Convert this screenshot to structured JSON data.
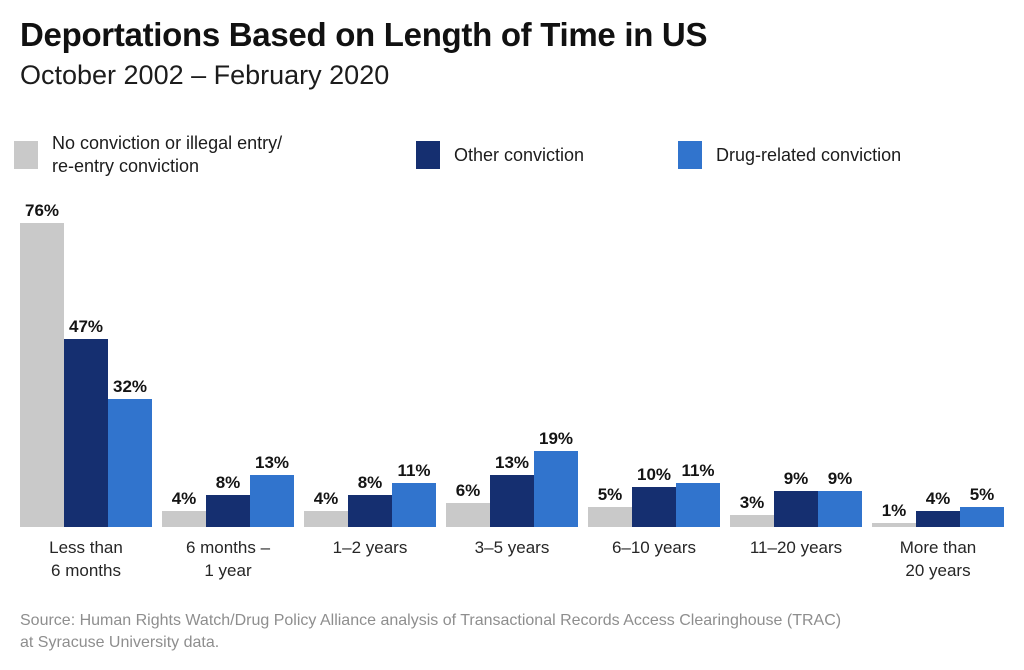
{
  "title": "Deportations Based on Length of Time in US",
  "subtitle": "October 2002 – February 2020",
  "legend": [
    {
      "label": "No conviction or illegal entry/\nre-entry conviction",
      "color": "#c9c9c9"
    },
    {
      "label": "Other conviction",
      "color": "#152f70"
    },
    {
      "label": "Drug-related conviction",
      "color": "#3174cd"
    }
  ],
  "chart_data": {
    "type": "bar",
    "title": "Deportations Based on Length of Time in US",
    "subtitle": "October 2002 – February 2020",
    "categories": [
      "Less than\n6 months",
      "6 months –\n1 year",
      "1–2 years",
      "3–5 years",
      "6–10 years",
      "11–20 years",
      "More than\n20 years"
    ],
    "series": [
      {
        "name": "No conviction or illegal entry/re-entry conviction",
        "color": "#c9c9c9",
        "values": [
          76,
          4,
          4,
          6,
          5,
          3,
          1
        ]
      },
      {
        "name": "Other conviction",
        "color": "#152f70",
        "values": [
          47,
          8,
          8,
          13,
          10,
          9,
          4
        ]
      },
      {
        "name": "Drug-related conviction",
        "color": "#3174cd",
        "values": [
          32,
          13,
          11,
          19,
          11,
          9,
          5
        ]
      }
    ],
    "value_suffix": "%",
    "data_labels": true,
    "grid": false,
    "legend_position": "top",
    "ylim": [
      0,
      80
    ],
    "xlabel": "",
    "ylabel": ""
  },
  "source": "Source: Human Rights Watch/Drug Policy Alliance analysis of Transactional Records Access Clearinghouse (TRAC)\nat Syracuse University data."
}
